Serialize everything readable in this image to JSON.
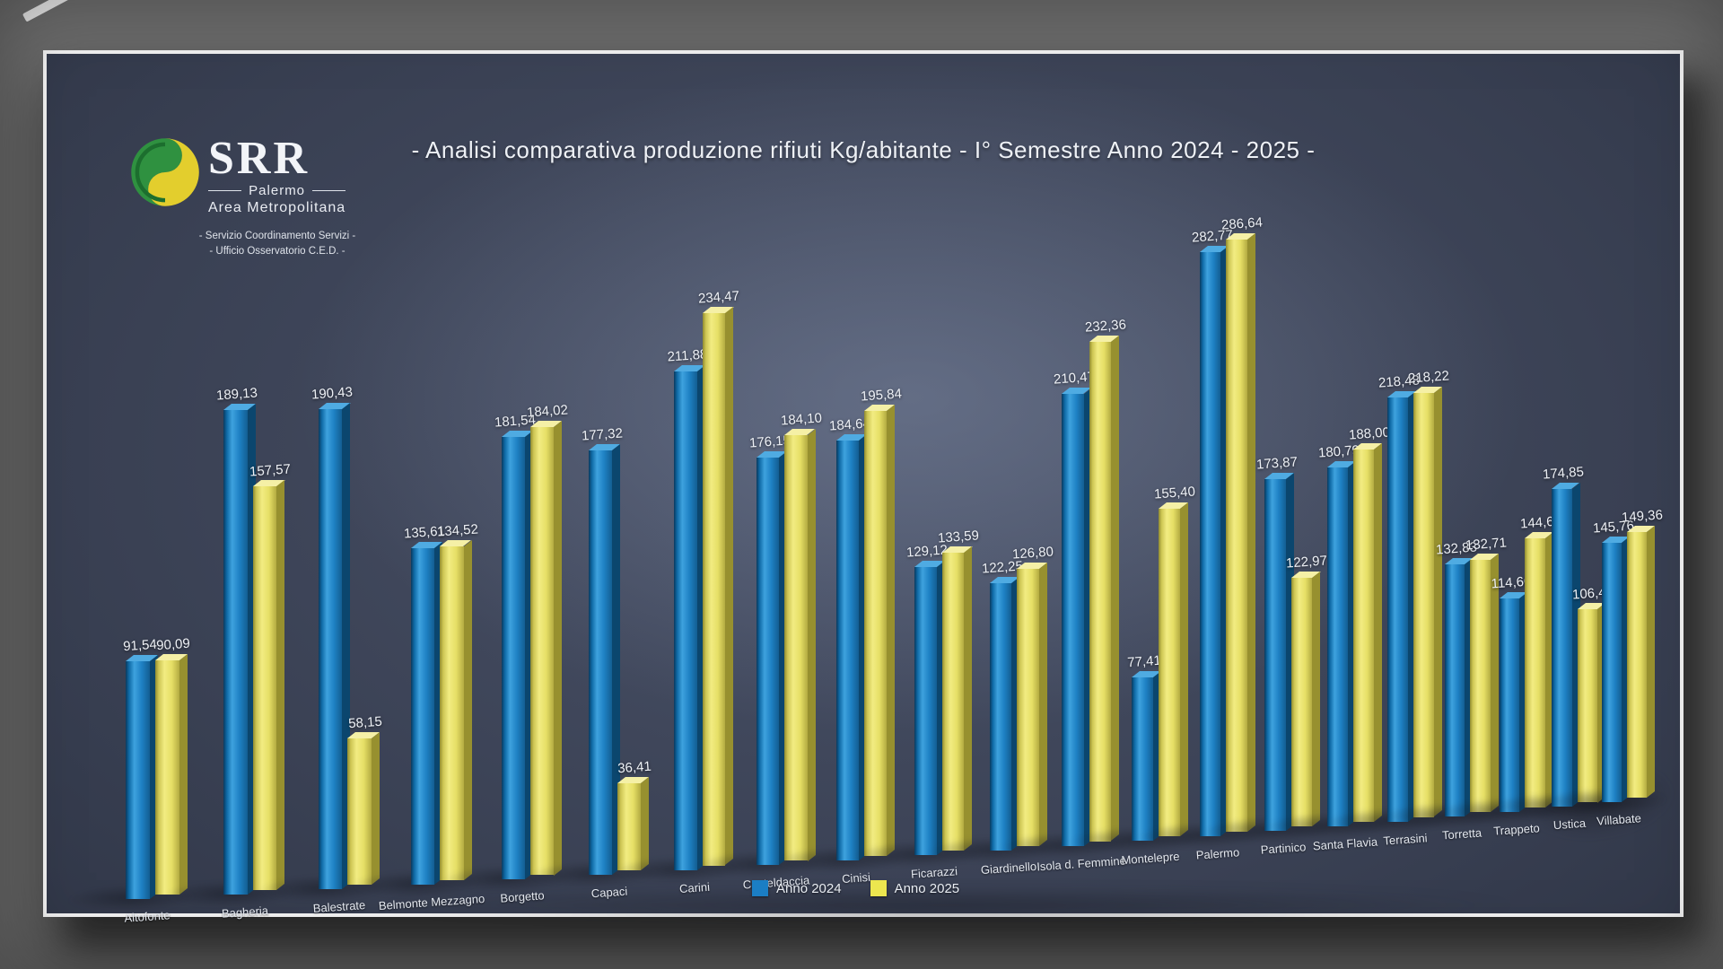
{
  "title": "- Analisi comparativa produzione rifiuti Kg/abitante  - I° Semestre Anno 2024 - 2025 -",
  "logo": {
    "acronym": "SRR",
    "region": "Palermo",
    "area": "Area Metropolitana",
    "service_line1": "- Servizio Coordinamento Servizi -",
    "service_line2": "- Ufficio Osservatorio C.E.D. -"
  },
  "legend": [
    {
      "label": "Anno 2024",
      "color": "#1b7ec4"
    },
    {
      "label": "Anno 2025",
      "color": "#ece64f"
    }
  ],
  "chart_data": {
    "type": "bar",
    "title": "- Analisi comparativa produzione rifiuti Kg/abitante  - I° Semestre Anno 2024 - 2025 -",
    "xlabel": "",
    "ylabel": "Kg/abitante",
    "ylim": [
      0,
      300
    ],
    "grid": false,
    "legend_position": "bottom",
    "style": "3d-column",
    "value_format": "comma-decimal-2",
    "categories": [
      "Altofonte",
      "Bagheria",
      "Balestrate",
      "Belmonte Mezzagno",
      "Borgetto",
      "Capaci",
      "Carini",
      "Casteldaccia",
      "Cinisi",
      "Ficarazzi",
      "Giardinello",
      "Isola d. Femmine",
      "Montelepre",
      "Palermo",
      "Partinico",
      "Santa Flavia",
      "Terrasini",
      "Torretta",
      "Trappeto",
      "Ustica",
      "Villabate"
    ],
    "series": [
      {
        "name": "Anno 2024",
        "color": "#1b7ec4",
        "values": [
          91.54,
          189.13,
          190.43,
          135.61,
          181.54,
          177.32,
          211.88,
          176.15,
          184.64,
          129.12,
          122.25,
          210.47,
          77.41,
          282.77,
          173.87,
          180.79,
          218.48,
          132.83,
          114.66,
          174.85,
          145.76
        ]
      },
      {
        "name": "Anno 2025",
        "color": "#ece64f",
        "values": [
          90.09,
          157.57,
          58.15,
          134.52,
          184.02,
          36.41,
          234.47,
          184.1,
          195.84,
          133.59,
          126.8,
          232.36,
          155.4,
          286.64,
          122.97,
          188.0,
          218.22,
          132.71,
          144.6,
          106.41,
          149.36
        ]
      }
    ]
  }
}
